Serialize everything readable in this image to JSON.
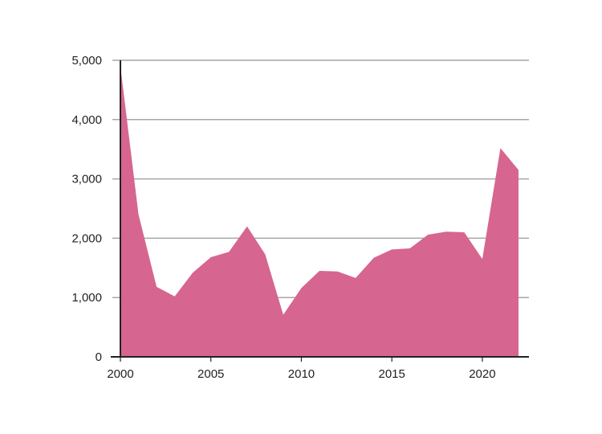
{
  "chart_data": {
    "type": "area",
    "title": "",
    "xlabel": "",
    "ylabel": "",
    "x": [
      2000,
      2001,
      2002,
      2003,
      2004,
      2005,
      2006,
      2007,
      2008,
      2009,
      2010,
      2011,
      2012,
      2013,
      2014,
      2015,
      2016,
      2017,
      2018,
      2019,
      2020,
      2021,
      2022
    ],
    "series": [
      {
        "values": [
          4900,
          2400,
          1180,
          1020,
          1420,
          1680,
          1770,
          2200,
          1730,
          710,
          1160,
          1450,
          1440,
          1330,
          1670,
          1810,
          1830,
          2060,
          2110,
          2100,
          1650,
          3520,
          3150
        ]
      }
    ],
    "xlim": [
      2000,
      2022
    ],
    "ylim": [
      0,
      5000
    ],
    "x_ticks": [
      {
        "value": 2000,
        "label": "2000"
      },
      {
        "value": 2005,
        "label": "2005"
      },
      {
        "value": 2010,
        "label": "2010"
      },
      {
        "value": 2015,
        "label": "2015"
      },
      {
        "value": 2020,
        "label": "2020"
      }
    ],
    "y_ticks": [
      {
        "value": 0,
        "label": "0"
      },
      {
        "value": 1000,
        "label": "1,000"
      },
      {
        "value": 2000,
        "label": "2,000"
      },
      {
        "value": 3000,
        "label": "3,000"
      },
      {
        "value": 4000,
        "label": "4,000"
      },
      {
        "value": 5000,
        "label": "5,000"
      }
    ],
    "grid": true,
    "legend": "none",
    "colors": {
      "area": "#d6668f",
      "grid": "#a6a6a6",
      "axis": "#222222",
      "text": "#222222"
    }
  }
}
